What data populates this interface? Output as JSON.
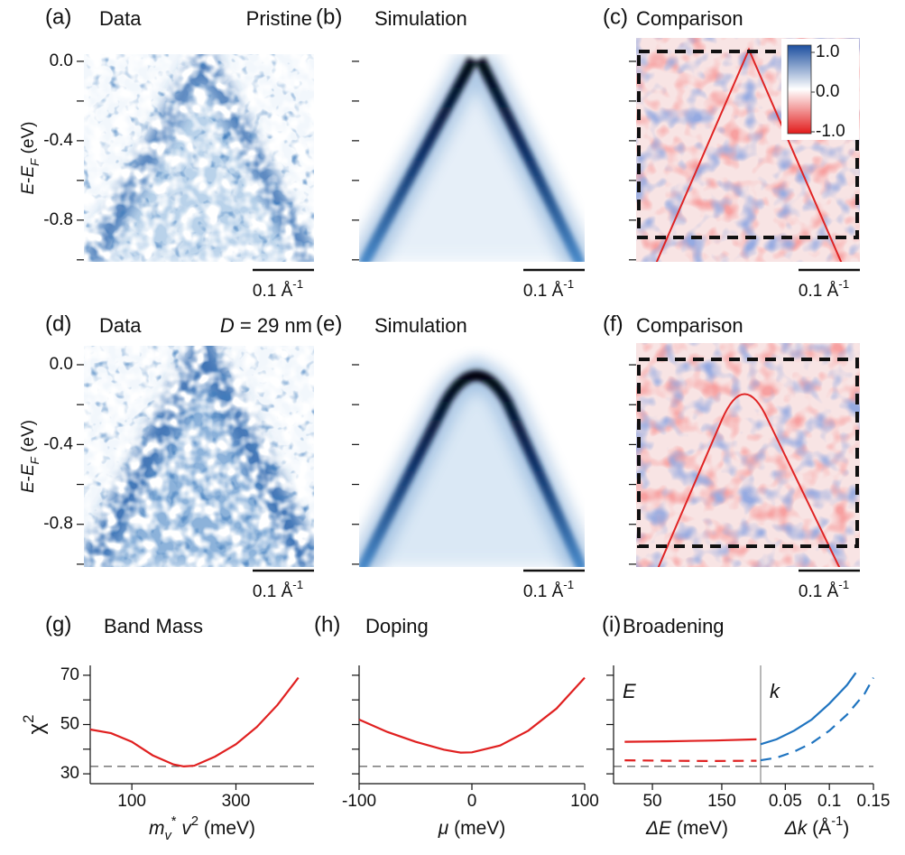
{
  "chart_data": [
    {
      "type": "image",
      "panel": "(a)",
      "title": "Data",
      "annotation": "Pristine",
      "ylim": [
        -1.01,
        0.036
      ],
      "yticks": [
        {
          "value": 0,
          "label": "0.0"
        },
        -0.4,
        -0.8
      ],
      "tick_marks": [
        -0.2,
        -0.6,
        -1.0
      ],
      "y_label": {
        "runs": [
          {
            "text": "E",
            "style": "italic"
          },
          {
            "text": "-"
          },
          {
            "text": "E",
            "style": "italic"
          },
          {
            "text": "F",
            "style": "italic-sub"
          },
          {
            "text": " (eV)"
          }
        ]
      },
      "scale_bar": {
        "runs": [
          {
            "text": "0.1 Å"
          },
          {
            "text": "-1",
            "style": "sup"
          }
        ]
      }
    },
    {
      "type": "image",
      "panel": "(b)",
      "title": "Simulation",
      "ylim": [
        -1.01,
        0.036
      ],
      "tick_marks": [
        0,
        -0.2,
        -0.4,
        -0.6,
        -0.8,
        -1.0
      ],
      "scale_bar": {
        "runs": [
          {
            "text": "0.1 Å"
          },
          {
            "text": "-1",
            "style": "sup"
          }
        ]
      }
    },
    {
      "type": "image",
      "panel": "(c)",
      "title": "Comparison",
      "ylim": [
        -1.01,
        0.118
      ],
      "tick_marks": [
        0,
        -0.2,
        -0.4,
        -0.6,
        -0.8,
        -1.0
      ],
      "colorbar": {
        "lim": [
          -1,
          1
        ],
        "ticks": [
          {
            "value": 1,
            "label": "1.0"
          },
          {
            "value": 0,
            "label": "0.0"
          },
          {
            "value": -1,
            "label": "-1.0"
          }
        ]
      },
      "scale_bar": {
        "runs": [
          {
            "text": "0.1 Å"
          },
          {
            "text": "-1",
            "style": "sup"
          }
        ]
      }
    },
    {
      "type": "image",
      "panel": "(d)",
      "title": "Data",
      "annotation": {
        "runs": [
          {
            "text": "D",
            "style": "italic"
          },
          {
            "text": " = 29 nm"
          }
        ]
      },
      "ylim": [
        -1.014,
        0.095
      ],
      "yticks": [
        {
          "value": 0,
          "label": "0.0"
        },
        -0.4,
        -0.8
      ],
      "tick_marks": [
        -0.2,
        -0.6,
        -1.0
      ],
      "y_label": {
        "runs": [
          {
            "text": "E",
            "style": "italic"
          },
          {
            "text": "-"
          },
          {
            "text": "E",
            "style": "italic"
          },
          {
            "text": "F",
            "style": "italic-sub"
          },
          {
            "text": " (eV)"
          }
        ]
      },
      "scale_bar": {
        "runs": [
          {
            "text": "0.1 Å"
          },
          {
            "text": "-1",
            "style": "sup"
          }
        ]
      }
    },
    {
      "type": "image",
      "panel": "(e)",
      "title": "Simulation",
      "ylim": [
        -1.014,
        0.095
      ],
      "tick_marks": [
        0,
        -0.2,
        -0.4,
        -0.6,
        -0.8,
        -1.0
      ],
      "scale_bar": {
        "runs": [
          {
            "text": "0.1 Å"
          },
          {
            "text": "-1",
            "style": "sup"
          }
        ]
      }
    },
    {
      "type": "image",
      "panel": "(f)",
      "title": "Comparison",
      "ylim": [
        -1.014,
        0.109
      ],
      "tick_marks": [
        0,
        -0.2,
        -0.4,
        -0.6,
        -0.8,
        -1.0
      ],
      "scale_bar": {
        "runs": [
          {
            "text": "0.1 Å"
          },
          {
            "text": "-1",
            "style": "sup"
          }
        ]
      }
    },
    {
      "type": "line",
      "panel": "(g)",
      "title": "Band Mass",
      "xlim": [
        20,
        450
      ],
      "xticks": [
        100,
        300
      ],
      "ylim": [
        26,
        74
      ],
      "yticks": [
        30,
        50,
        70
      ],
      "tick_marks": [
        40,
        60
      ],
      "reference": 33,
      "y_label": {
        "runs": [
          {
            "text": "χ"
          },
          {
            "text": "2",
            "style": "sup"
          }
        ]
      },
      "x_label": {
        "runs": [
          {
            "text": "m",
            "style": "italic"
          },
          {
            "text": "v",
            "style": "italic-sub"
          },
          {
            "text": "*",
            "style": "sup"
          },
          {
            "text": " v",
            "style": "italic"
          },
          {
            "text": "2",
            "style": "sup"
          },
          {
            "text": " (meV)"
          }
        ]
      },
      "series": [
        {
          "color": "#e02020",
          "x": [
            20,
            60,
            100,
            140,
            180,
            200,
            220,
            260,
            300,
            340,
            380,
            420
          ],
          "values": [
            48,
            46.5,
            43,
            37.5,
            33.8,
            33,
            33.3,
            37,
            42,
            49,
            58,
            69
          ]
        }
      ]
    },
    {
      "type": "line",
      "panel": "(h)",
      "title": "Doping",
      "xlim": [
        -100,
        100
      ],
      "xticks": [
        -100,
        0,
        100
      ],
      "ylim": [
        26,
        74
      ],
      "tick_marks": [
        30,
        40,
        50,
        60,
        70
      ],
      "reference": 33,
      "x_label": {
        "runs": [
          {
            "text": "μ",
            "style": "italic"
          },
          {
            "text": " (meV)"
          }
        ]
      },
      "series": [
        {
          "color": "#e02020",
          "x": [
            -100,
            -75,
            -50,
            -25,
            -10,
            0,
            25,
            50,
            75,
            100
          ],
          "values": [
            52,
            47,
            43,
            39.8,
            38.6,
            38.7,
            41.5,
            47.5,
            56.5,
            69
          ]
        }
      ]
    },
    {
      "type": "line",
      "panel": "(i)",
      "title": "Broadening",
      "inset_label": "E",
      "xlim": [
        -6,
        206
      ],
      "xticks": [
        50,
        150
      ],
      "ylim": [
        26,
        74
      ],
      "tick_marks": [
        30,
        40,
        50,
        60,
        70
      ],
      "reference": 33,
      "x_label": {
        "runs": [
          {
            "text": "ΔE",
            "style": "italic"
          },
          {
            "text": " (meV)"
          }
        ]
      },
      "series": [
        {
          "color": "#e02020",
          "x": [
            10,
            70,
            140,
            200
          ],
          "values": [
            43,
            43.2,
            43.5,
            44
          ]
        },
        {
          "color": "#e02020",
          "dash": true,
          "x": [
            10,
            70,
            140,
            200
          ],
          "values": [
            35.5,
            35.3,
            35.2,
            35.3
          ]
        }
      ]
    },
    {
      "type": "line",
      "inset_label": "k",
      "xlim": [
        0.022,
        0.15
      ],
      "xticks": [
        0.05,
        0.1,
        0.15
      ],
      "ylim": [
        26,
        74
      ],
      "reference": 33,
      "x_label": {
        "runs": [
          {
            "text": "Δk",
            "style": "italic"
          },
          {
            "text": " (Å"
          },
          {
            "text": "-1",
            "style": "sup"
          },
          {
            "text": ")"
          }
        ]
      },
      "series": [
        {
          "color": "#1f74c0",
          "x": [
            0.022,
            0.04,
            0.06,
            0.08,
            0.1,
            0.12,
            0.13
          ],
          "values": [
            42,
            44,
            47.5,
            52,
            58.5,
            66,
            71
          ]
        },
        {
          "color": "#1f74c0",
          "dash": true,
          "x": [
            0.022,
            0.04,
            0.06,
            0.08,
            0.1,
            0.12,
            0.14,
            0.15
          ],
          "values": [
            35.5,
            36.5,
            39,
            42.5,
            47.5,
            54,
            62.5,
            69
          ]
        }
      ]
    }
  ]
}
